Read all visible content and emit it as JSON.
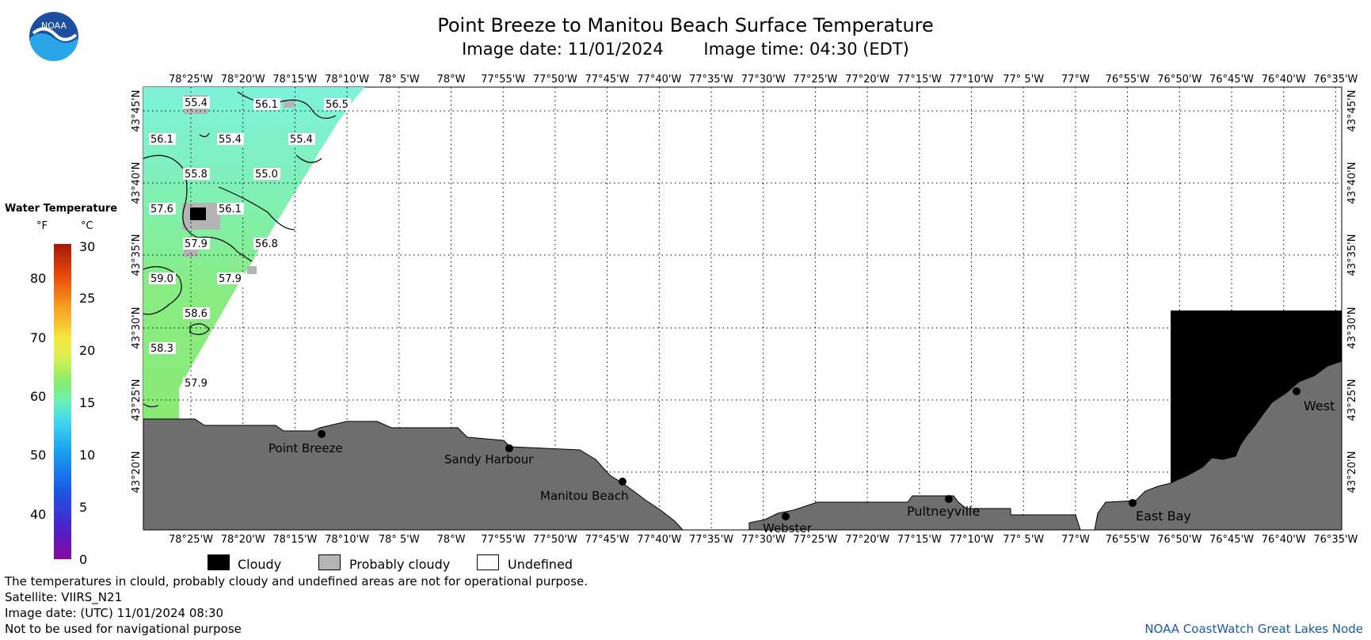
{
  "header": {
    "title": "Point Breeze to Manitou Beach Surface Temperature",
    "image_date": "Image date: 11/01/2024",
    "image_time": "Image time: 04:30 (EDT)"
  },
  "logo": {
    "text": "NOAA",
    "icon": "noaa-logo"
  },
  "legend": {
    "title": "Water Temperature",
    "unit_f": "°F",
    "unit_c": "°C",
    "f_ticks": [
      "80",
      "70",
      "60",
      "50",
      "40"
    ],
    "c_ticks": [
      "30",
      "25",
      "20",
      "15",
      "10",
      "5",
      "0"
    ]
  },
  "axes": {
    "lon_labels": [
      "78°25'W",
      "78°20'W",
      "78°15'W",
      "78°10'W",
      "78° 5'W",
      "78°W",
      "77°55'W",
      "77°50'W",
      "77°45'W",
      "77°40'W",
      "77°35'W",
      "77°30'W",
      "77°25'W",
      "77°20'W",
      "77°15'W",
      "77°10'W",
      "77° 5'W",
      "77°W",
      "76°55'W",
      "76°50'W",
      "76°45'W",
      "76°40'W",
      "76°35'W"
    ],
    "lat_labels": [
      "43°45'N",
      "43°40'N",
      "43°35'N",
      "43°30'N",
      "43°25'N",
      "43°20'N"
    ]
  },
  "temperature_labels": [
    "55.4",
    "56.1",
    "56.5",
    "56.1",
    "55.4",
    "55.4",
    "55.8",
    "55.0",
    "57.6",
    "56.1",
    "57.9",
    "56.8",
    "59.0",
    "57.9",
    "58.6",
    "58.3",
    "57.9"
  ],
  "places": [
    "Point Breeze",
    "Sandy Harbour",
    "Manitou Beach",
    "Webster",
    "Pultneyville",
    "East Bay",
    "West"
  ],
  "key": {
    "cloudy": "Cloudy",
    "probably_cloudy": "Probably cloudy",
    "undefined": "Undefined"
  },
  "footer": {
    "note": "The temperatures in clould, probably cloudy and undefined areas are not for operational purpose.",
    "satellite": "Satellite: VIIRS_N21",
    "utc_date": "Image date: (UTC) 11/01/2024  08:30",
    "disclaimer": "Not to be used for navigational purpose",
    "credit": "NOAA CoastWatch Great Lakes Node"
  },
  "colors": {
    "land": "#6e6e6e",
    "cloud": "#000000",
    "probably_cloud": "#b4b4b4",
    "credit": "#1a5aa8"
  }
}
